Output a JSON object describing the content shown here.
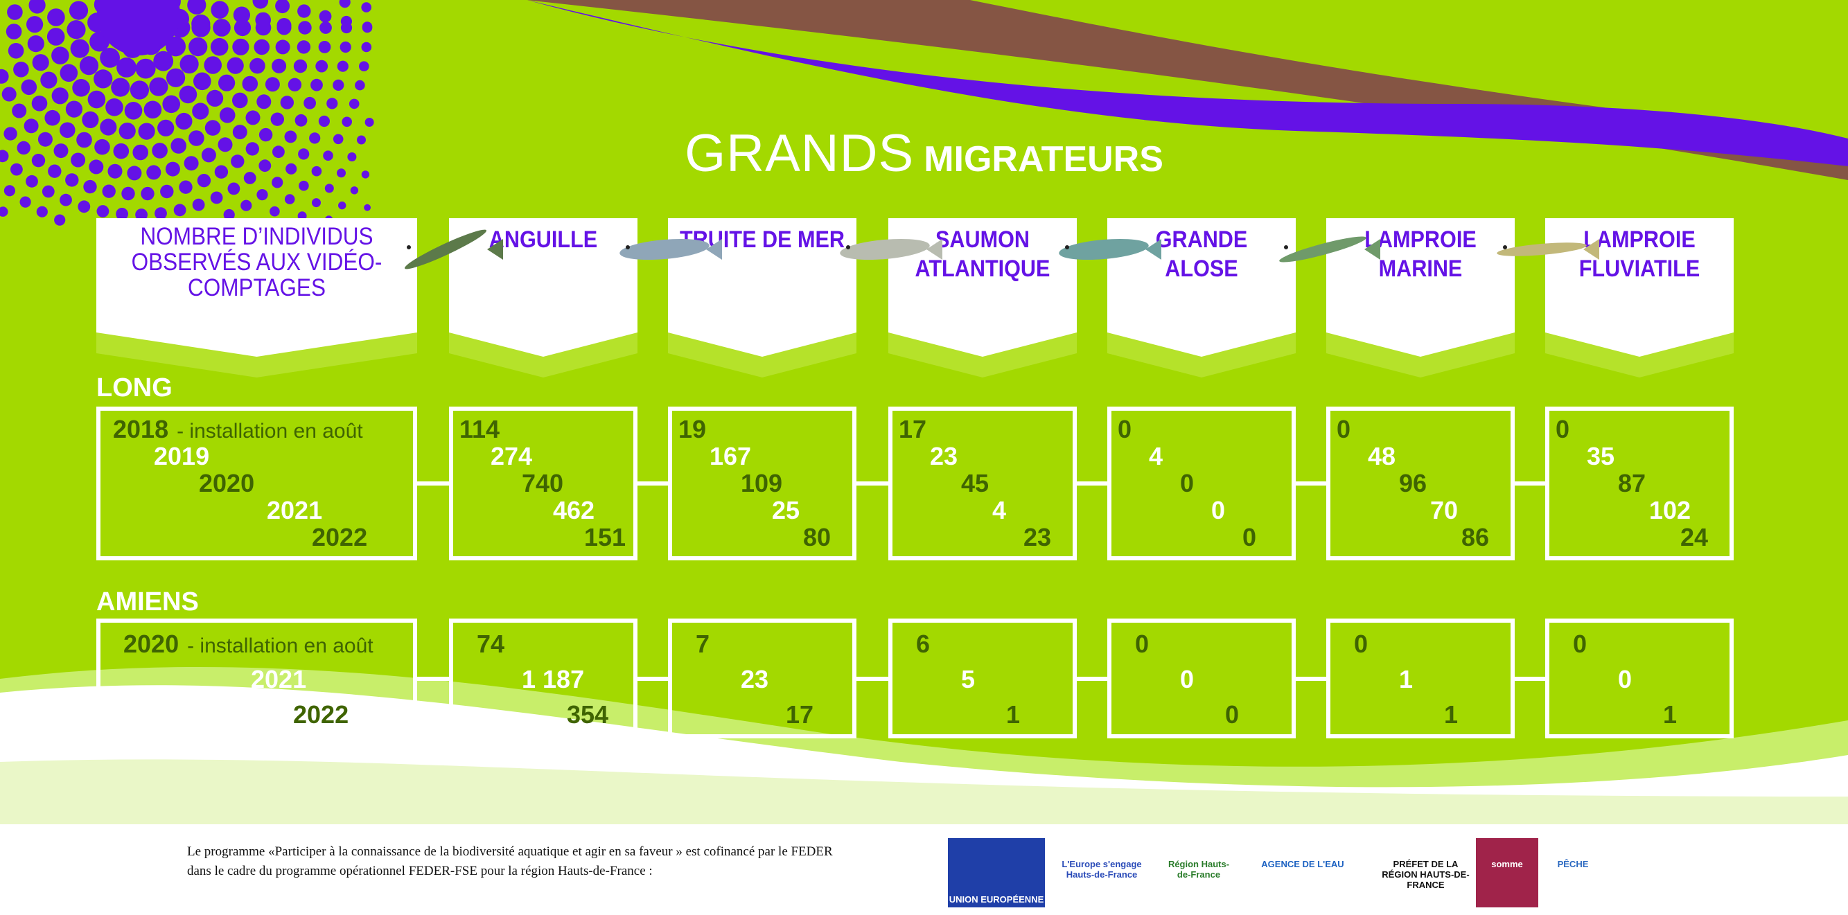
{
  "title": {
    "part1": "GRANDS",
    "part2": "MIGRATEURS"
  },
  "header_label": "NOMBRE D’INDIVIDUS OBSERVÉS AUX VIDÉO-COMPTAGES",
  "species": [
    {
      "name": "ANGUILLE",
      "icon": "eel-icon"
    },
    {
      "name": "TRUITE DE MER",
      "icon": "trout-icon"
    },
    {
      "name": "SAUMON ATLANTIQUE",
      "icon": "salmon-icon"
    },
    {
      "name": "GRANDE ALOSE",
      "icon": "shad-icon"
    },
    {
      "name": "LAMPROIE MARINE",
      "icon": "sea-lamprey-icon"
    },
    {
      "name": "LAMPROIE FLUVIATILE",
      "icon": "river-lamprey-icon"
    }
  ],
  "sections": [
    {
      "name": "LONG",
      "years": [
        "2018",
        "2019",
        "2020",
        "2021",
        "2022"
      ],
      "note": "- installation en août",
      "values": [
        [
          "114",
          "274",
          "740",
          "462",
          "151"
        ],
        [
          "19",
          "167",
          "109",
          "25",
          "80"
        ],
        [
          "17",
          "23",
          "45",
          "4",
          "23"
        ],
        [
          "0",
          "4",
          "0",
          "0",
          "0"
        ],
        [
          "0",
          "48",
          "96",
          "70",
          "86"
        ],
        [
          "0",
          "35",
          "87",
          "102",
          "24"
        ]
      ]
    },
    {
      "name": "AMIENS",
      "years": [
        "2020",
        "2021",
        "2022"
      ],
      "note": "- installation en août",
      "values": [
        [
          "74",
          "1 187",
          "354"
        ],
        [
          "7",
          "23",
          "17"
        ],
        [
          "6",
          "5",
          "1"
        ],
        [
          "0",
          "0",
          "0"
        ],
        [
          "0",
          "1",
          "1"
        ],
        [
          "0",
          "0",
          "1"
        ]
      ]
    }
  ],
  "footer": {
    "line1": "Le programme «Participer à la connaissance de la biodiversité aquatique et agir en sa faveur » est cofinancé par le FEDER",
    "line2": "dans le cadre du programme opérationnel FEDER-FSE pour la région Hauts-de-France :",
    "logos": [
      "UNION EUROPÉENNE",
      "L'Europe s'engage Hauts-de-France",
      "Région Hauts-de-France",
      "AGENCE DE L'EAU",
      "PRÉFET DE LA RÉGION HAUTS-DE-FRANCE",
      "somme",
      "PÊCHE"
    ]
  },
  "colors": {
    "green": "#a3d900",
    "purple": "#6412e6",
    "brown": "#855544",
    "dark": "#3f6402"
  }
}
